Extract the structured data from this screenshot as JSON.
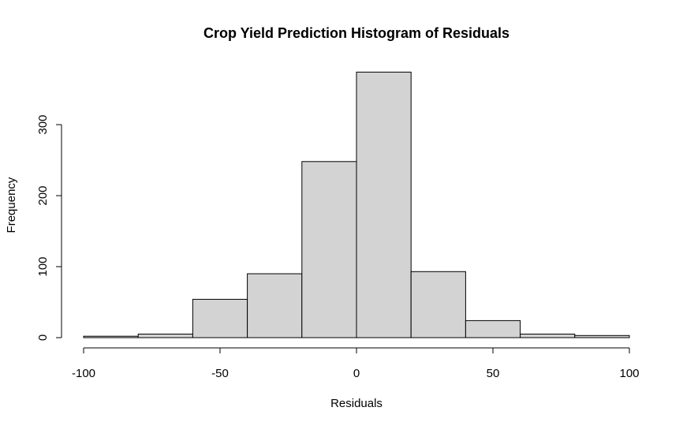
{
  "chart_data": {
    "type": "bar",
    "title": "Crop Yield Prediction Histogram of Residuals",
    "xlabel": "Residuals",
    "ylabel": "Frequency",
    "bins": [
      {
        "from": -100,
        "to": -80,
        "count": 2
      },
      {
        "from": -80,
        "to": -60,
        "count": 5
      },
      {
        "from": -60,
        "to": -40,
        "count": 54
      },
      {
        "from": -40,
        "to": -20,
        "count": 90
      },
      {
        "from": -20,
        "to": 0,
        "count": 248
      },
      {
        "from": 0,
        "to": 20,
        "count": 374
      },
      {
        "from": 20,
        "to": 40,
        "count": 93
      },
      {
        "from": 40,
        "to": 60,
        "count": 24
      },
      {
        "from": 60,
        "to": 80,
        "count": 5
      },
      {
        "from": 80,
        "to": 100,
        "count": 3
      }
    ],
    "xlim": [
      -100,
      100
    ],
    "ylim": [
      0,
      374
    ],
    "x_ticks": [
      "-100",
      "-50",
      "0",
      "50",
      "100"
    ],
    "y_ticks": [
      "0",
      "100",
      "200",
      "300"
    ],
    "bar_color": "#d3d3d3",
    "edge_color": "#000000",
    "grid": false,
    "legend": "none"
  }
}
